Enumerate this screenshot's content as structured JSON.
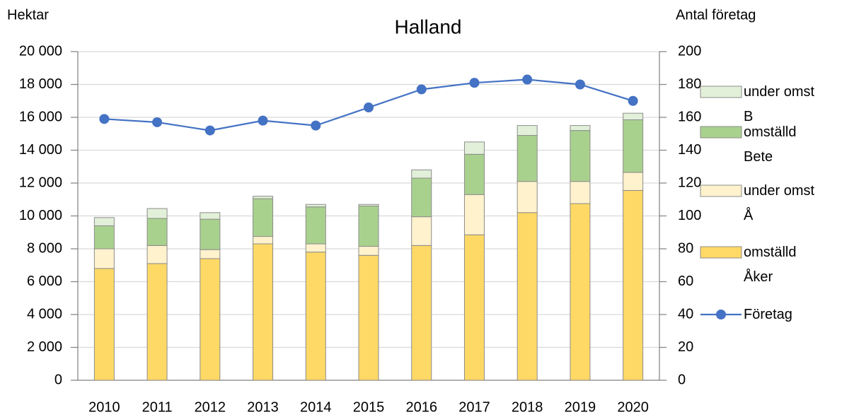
{
  "chart_data": {
    "type": "bar",
    "stacked": true,
    "title": "Halland",
    "y_label": "Hektar",
    "y2_label": "Antal företag",
    "categories": [
      "2010",
      "2011",
      "2012",
      "2013",
      "2014",
      "2015",
      "2016",
      "2017",
      "2018",
      "2019",
      "2020"
    ],
    "series": [
      {
        "name": "omställd Åker",
        "color": "#ffd966",
        "values": [
          6800,
          7100,
          7400,
          8300,
          7800,
          7600,
          8200,
          8850,
          10200,
          10750,
          11550
        ]
      },
      {
        "name": "under omst Å",
        "color": "#fff2cc",
        "values": [
          1200,
          1100,
          550,
          450,
          500,
          550,
          1750,
          2450,
          1900,
          1350,
          1100
        ]
      },
      {
        "name": "omställd Bete",
        "color": "#a9d18e",
        "values": [
          1400,
          1650,
          1850,
          2300,
          2250,
          2450,
          2350,
          2450,
          2800,
          3100,
          3200
        ]
      },
      {
        "name": "under omst B",
        "color": "#e2f0d9",
        "values": [
          500,
          600,
          400,
          150,
          150,
          100,
          500,
          750,
          600,
          300,
          400
        ]
      },
      {
        "name": "Företag",
        "color": "#4472c4",
        "type": "line",
        "axis": "y2",
        "values": [
          159,
          157,
          152,
          158,
          155,
          166,
          177,
          181,
          183,
          180,
          170
        ]
      }
    ],
    "ylim": [
      0,
      20000
    ],
    "yticks": [
      0,
      {
        "value": 2000,
        "label": "2 000"
      },
      {
        "value": 4000,
        "label": "4 000"
      },
      {
        "value": 6000,
        "label": "6 000"
      },
      {
        "value": 8000,
        "label": "8 000"
      },
      {
        "value": 10000,
        "label": "10 000"
      },
      {
        "value": 12000,
        "label": "12 000"
      },
      {
        "value": 14000,
        "label": "14 000"
      },
      {
        "value": 16000,
        "label": "16 000"
      },
      {
        "value": 18000,
        "label": "18 000"
      },
      {
        "value": 20000,
        "label": "20 000"
      }
    ],
    "y2lim": [
      0,
      200
    ],
    "y2ticks": [
      0,
      20,
      40,
      60,
      80,
      100,
      120,
      140,
      160,
      180,
      200
    ],
    "grid": true,
    "legend": "right"
  }
}
